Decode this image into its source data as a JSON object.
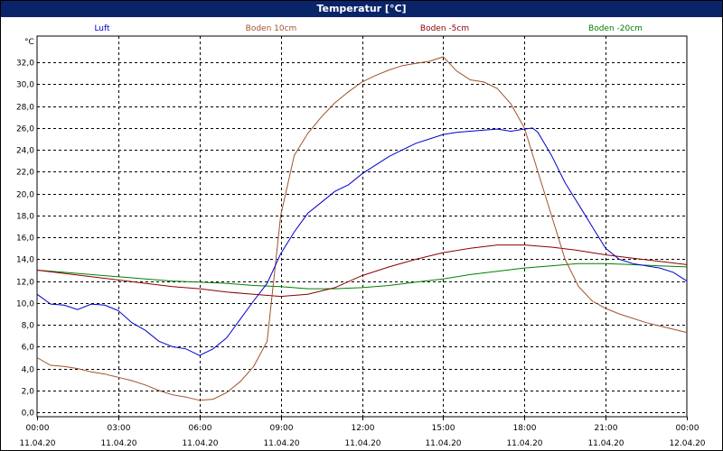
{
  "window": {
    "title": "Temperatur [°C]"
  },
  "chart_data": {
    "type": "line",
    "title": "Temperatur [°C]",
    "ylabel": "°C",
    "xlabel": "",
    "ylim": [
      -0.4,
      34.4
    ],
    "xlim": [
      0,
      24
    ],
    "grid": true,
    "legend_position": "top",
    "y_ticks": [
      "0,0",
      "2,0",
      "4,0",
      "6,0",
      "8,0",
      "10,0",
      "12,0",
      "14,0",
      "16,0",
      "18,0",
      "20,0",
      "22,0",
      "24,0",
      "26,0",
      "28,0",
      "30,0",
      "32,0"
    ],
    "y_tick_values": [
      0,
      2,
      4,
      6,
      8,
      10,
      12,
      14,
      16,
      18,
      20,
      22,
      24,
      26,
      28,
      30,
      32
    ],
    "x_ticks": [
      {
        "time": "00:00",
        "date": "11.04.20"
      },
      {
        "time": "03:00",
        "date": "11.04.20"
      },
      {
        "time": "06:00",
        "date": "11.04.20"
      },
      {
        "time": "09:00",
        "date": "11.04.20"
      },
      {
        "time": "12:00",
        "date": "11.04.20"
      },
      {
        "time": "15:00",
        "date": "11.04.20"
      },
      {
        "time": "18:00",
        "date": "11.04.20"
      },
      {
        "time": "21:00",
        "date": "11.04.20"
      },
      {
        "time": "00:00",
        "date": "12.04.20"
      }
    ],
    "series": [
      {
        "name": "Luft",
        "color": "#0000cc",
        "x": [
          0,
          0.5,
          1,
          1.5,
          2,
          2.5,
          3,
          3.5,
          4,
          4.5,
          5,
          5.5,
          6,
          6.5,
          7,
          7.5,
          8,
          8.5,
          9,
          9.5,
          10,
          10.5,
          11,
          11.5,
          12,
          12.5,
          13,
          13.5,
          14,
          14.5,
          15,
          15.5,
          16,
          16.5,
          17,
          17.5,
          18,
          18.3,
          18.5,
          19,
          19.5,
          20,
          20.5,
          21,
          21.5,
          22,
          22.5,
          23,
          23.5,
          24
        ],
        "values": [
          10.8,
          9.9,
          9.8,
          9.4,
          9.9,
          9.8,
          9.3,
          8.2,
          7.5,
          6.5,
          6.0,
          5.8,
          5.2,
          5.8,
          6.8,
          8.5,
          10.2,
          11.8,
          14.5,
          16.5,
          18.2,
          19.2,
          20.2,
          20.8,
          21.8,
          22.6,
          23.4,
          24.0,
          24.6,
          25.0,
          25.4,
          25.6,
          25.7,
          25.8,
          25.9,
          25.7,
          25.9,
          26.0,
          25.6,
          23.5,
          21.0,
          19.0,
          17.0,
          15.0,
          14.0,
          13.6,
          13.4,
          13.2,
          12.8,
          12.0
        ]
      },
      {
        "name": "Boden 10cm",
        "color": "#a0522d",
        "x": [
          0,
          0.5,
          1,
          1.5,
          2,
          2.5,
          3,
          3.5,
          4,
          4.5,
          5,
          5.5,
          6,
          6.5,
          7,
          7.5,
          8,
          8.5,
          9,
          9.5,
          10,
          10.5,
          11,
          11.5,
          12,
          12.5,
          13,
          13.5,
          14,
          14.5,
          15,
          15.5,
          16,
          16.5,
          17,
          17.5,
          18,
          18.5,
          19,
          19.5,
          20,
          20.5,
          21,
          21.5,
          22,
          22.5,
          23,
          23.5,
          24
        ],
        "values": [
          5.0,
          4.3,
          4.2,
          4.0,
          3.7,
          3.5,
          3.2,
          2.9,
          2.5,
          2.0,
          1.6,
          1.4,
          1.1,
          1.2,
          1.8,
          2.8,
          4.2,
          6.5,
          18.0,
          23.5,
          25.5,
          27.0,
          28.3,
          29.3,
          30.2,
          30.8,
          31.3,
          31.7,
          31.9,
          32.1,
          32.5,
          31.2,
          30.4,
          30.2,
          29.6,
          28.2,
          26.0,
          22.0,
          18.0,
          14.0,
          11.5,
          10.2,
          9.5,
          9.0,
          8.6,
          8.2,
          7.9,
          7.6,
          7.3
        ]
      },
      {
        "name": "Boden -5cm",
        "color": "#8b0000",
        "x": [
          0,
          1,
          2,
          3,
          4,
          5,
          6,
          7,
          8,
          9,
          10,
          11,
          12,
          13,
          14,
          15,
          16,
          17,
          18,
          19,
          20,
          21,
          22,
          23,
          24
        ],
        "values": [
          13.0,
          12.7,
          12.4,
          12.1,
          11.8,
          11.5,
          11.3,
          11.0,
          10.8,
          10.6,
          10.8,
          11.4,
          12.5,
          13.3,
          14.0,
          14.6,
          15.0,
          15.3,
          15.3,
          15.1,
          14.8,
          14.4,
          14.1,
          13.8,
          13.5
        ]
      },
      {
        "name": "Boden -20cm",
        "color": "#008000",
        "x": [
          0,
          1,
          2,
          3,
          4,
          5,
          6,
          7,
          8,
          9,
          10,
          11,
          12,
          13,
          14,
          15,
          16,
          17,
          18,
          19,
          20,
          21,
          22,
          23,
          24
        ],
        "values": [
          13.0,
          12.8,
          12.6,
          12.4,
          12.2,
          12.0,
          11.9,
          11.8,
          11.6,
          11.5,
          11.3,
          11.3,
          11.4,
          11.6,
          11.9,
          12.2,
          12.6,
          12.9,
          13.2,
          13.4,
          13.6,
          13.6,
          13.5,
          13.4,
          13.3
        ]
      }
    ]
  }
}
